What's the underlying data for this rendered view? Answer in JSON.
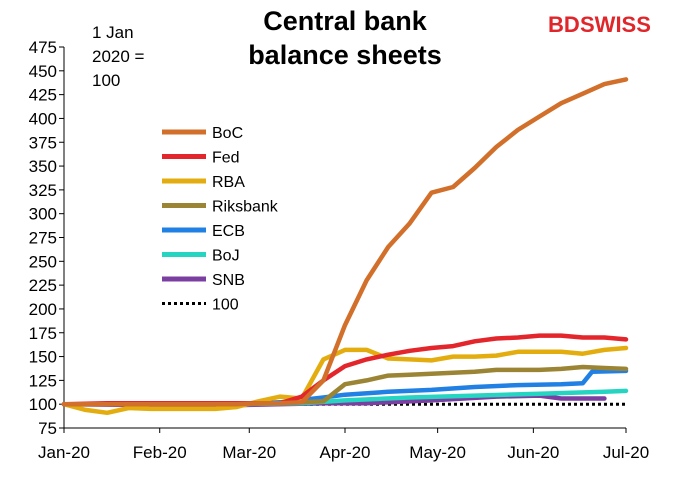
{
  "brand": {
    "bd": "BD",
    "swiss": "SWISS",
    "color": "#e0262b"
  },
  "chart_data": {
    "type": "line",
    "title_lines": [
      "Central bank",
      "balance sheets"
    ],
    "note_lines": [
      "1 Jan",
      "2020 =",
      "100"
    ],
    "ylim": [
      75,
      475
    ],
    "yticks": [
      75,
      100,
      125,
      150,
      175,
      200,
      225,
      250,
      275,
      300,
      325,
      350,
      375,
      400,
      425,
      450,
      475
    ],
    "x_range": [
      "2020-01-01",
      "2020-07-01"
    ],
    "xticks": [
      {
        "date": "2020-01-01",
        "label": "Jan-20"
      },
      {
        "date": "2020-02-01",
        "label": "Feb-20"
      },
      {
        "date": "2020-03-01",
        "label": "Mar-20"
      },
      {
        "date": "2020-04-01",
        "label": "Apr-20"
      },
      {
        "date": "2020-05-01",
        "label": "May-20"
      },
      {
        "date": "2020-06-01",
        "label": "Jun-20"
      },
      {
        "date": "2020-07-01",
        "label": "Jul-20"
      }
    ],
    "grid": false,
    "legend_position": "upper-left",
    "series": [
      {
        "name": "BoC",
        "color": "#d26f2a",
        "dash": false,
        "points": [
          [
            "2020-01-01",
            100
          ],
          [
            "2020-01-08",
            100
          ],
          [
            "2020-01-15",
            100
          ],
          [
            "2020-01-22",
            100
          ],
          [
            "2020-01-29",
            100
          ],
          [
            "2020-02-05",
            100
          ],
          [
            "2020-02-12",
            100
          ],
          [
            "2020-02-19",
            100
          ],
          [
            "2020-02-26",
            100
          ],
          [
            "2020-03-04",
            101
          ],
          [
            "2020-03-11",
            101
          ],
          [
            "2020-03-18",
            102
          ],
          [
            "2020-03-25",
            125
          ],
          [
            "2020-04-01",
            183
          ],
          [
            "2020-04-08",
            230
          ],
          [
            "2020-04-15",
            265
          ],
          [
            "2020-04-22",
            290
          ],
          [
            "2020-04-29",
            322
          ],
          [
            "2020-05-06",
            328
          ],
          [
            "2020-05-13",
            348
          ],
          [
            "2020-05-20",
            370
          ],
          [
            "2020-05-27",
            388
          ],
          [
            "2020-06-03",
            402
          ],
          [
            "2020-06-10",
            416
          ],
          [
            "2020-06-17",
            426
          ],
          [
            "2020-06-24",
            436
          ],
          [
            "2020-07-01",
            441
          ]
        ]
      },
      {
        "name": "Fed",
        "color": "#e3262b",
        "dash": false,
        "points": [
          [
            "2020-01-01",
            100
          ],
          [
            "2020-01-15",
            101
          ],
          [
            "2020-01-29",
            101
          ],
          [
            "2020-02-12",
            101
          ],
          [
            "2020-02-26",
            101
          ],
          [
            "2020-03-04",
            101
          ],
          [
            "2020-03-11",
            101
          ],
          [
            "2020-03-18",
            108
          ],
          [
            "2020-03-25",
            125
          ],
          [
            "2020-04-01",
            140
          ],
          [
            "2020-04-08",
            147
          ],
          [
            "2020-04-15",
            152
          ],
          [
            "2020-04-22",
            156
          ],
          [
            "2020-04-29",
            159
          ],
          [
            "2020-05-06",
            161
          ],
          [
            "2020-05-13",
            166
          ],
          [
            "2020-05-20",
            169
          ],
          [
            "2020-05-27",
            170
          ],
          [
            "2020-06-03",
            172
          ],
          [
            "2020-06-10",
            172
          ],
          [
            "2020-06-17",
            170
          ],
          [
            "2020-06-24",
            170
          ],
          [
            "2020-07-01",
            168
          ]
        ]
      },
      {
        "name": "RBA",
        "color": "#e3ad10",
        "dash": false,
        "points": [
          [
            "2020-01-01",
            100
          ],
          [
            "2020-01-08",
            94
          ],
          [
            "2020-01-15",
            91
          ],
          [
            "2020-01-22",
            96
          ],
          [
            "2020-01-29",
            95
          ],
          [
            "2020-02-05",
            95
          ],
          [
            "2020-02-12",
            95
          ],
          [
            "2020-02-19",
            95
          ],
          [
            "2020-02-26",
            97
          ],
          [
            "2020-03-04",
            103
          ],
          [
            "2020-03-11",
            108
          ],
          [
            "2020-03-18",
            106
          ],
          [
            "2020-03-25",
            147
          ],
          [
            "2020-04-01",
            157
          ],
          [
            "2020-04-08",
            157
          ],
          [
            "2020-04-15",
            148
          ],
          [
            "2020-04-22",
            147
          ],
          [
            "2020-04-29",
            146
          ],
          [
            "2020-05-06",
            150
          ],
          [
            "2020-05-13",
            150
          ],
          [
            "2020-05-20",
            151
          ],
          [
            "2020-05-27",
            155
          ],
          [
            "2020-06-03",
            155
          ],
          [
            "2020-06-10",
            155
          ],
          [
            "2020-06-17",
            153
          ],
          [
            "2020-06-24",
            157
          ],
          [
            "2020-07-01",
            159
          ]
        ]
      },
      {
        "name": "Riksbank",
        "color": "#9b8534",
        "dash": false,
        "points": [
          [
            "2020-01-01",
            100
          ],
          [
            "2020-01-15",
            100
          ],
          [
            "2020-01-29",
            100
          ],
          [
            "2020-02-12",
            100
          ],
          [
            "2020-02-26",
            100
          ],
          [
            "2020-03-11",
            101
          ],
          [
            "2020-03-25",
            103
          ],
          [
            "2020-04-01",
            121
          ],
          [
            "2020-04-08",
            125
          ],
          [
            "2020-04-15",
            130
          ],
          [
            "2020-04-22",
            131
          ],
          [
            "2020-04-29",
            132
          ],
          [
            "2020-05-06",
            133
          ],
          [
            "2020-05-13",
            134
          ],
          [
            "2020-05-20",
            136
          ],
          [
            "2020-05-27",
            136
          ],
          [
            "2020-06-03",
            136
          ],
          [
            "2020-06-10",
            137
          ],
          [
            "2020-06-17",
            139
          ],
          [
            "2020-06-24",
            138
          ],
          [
            "2020-07-01",
            137
          ]
        ]
      },
      {
        "name": "ECB",
        "color": "#2180e3",
        "dash": false,
        "points": [
          [
            "2020-01-01",
            100
          ],
          [
            "2020-01-15",
            100
          ],
          [
            "2020-01-29",
            100
          ],
          [
            "2020-02-12",
            100
          ],
          [
            "2020-02-26",
            100
          ],
          [
            "2020-03-11",
            102
          ],
          [
            "2020-03-25",
            107
          ],
          [
            "2020-04-01",
            110
          ],
          [
            "2020-04-15",
            113
          ],
          [
            "2020-04-29",
            115
          ],
          [
            "2020-05-13",
            118
          ],
          [
            "2020-05-27",
            120
          ],
          [
            "2020-06-10",
            121
          ],
          [
            "2020-06-17",
            122
          ],
          [
            "2020-06-20",
            134
          ],
          [
            "2020-07-01",
            135
          ]
        ]
      },
      {
        "name": "BoJ",
        "color": "#26d4c2",
        "dash": false,
        "points": [
          [
            "2020-01-01",
            100
          ],
          [
            "2020-01-29",
            100
          ],
          [
            "2020-02-26",
            100
          ],
          [
            "2020-03-18",
            101
          ],
          [
            "2020-04-01",
            104
          ],
          [
            "2020-04-22",
            107
          ],
          [
            "2020-05-13",
            109
          ],
          [
            "2020-06-03",
            111
          ],
          [
            "2020-06-24",
            113
          ],
          [
            "2020-07-01",
            114
          ]
        ]
      },
      {
        "name": "SNB",
        "color": "#7b3fa1",
        "dash": false,
        "points": [
          [
            "2020-01-01",
            100
          ],
          [
            "2020-01-29",
            99
          ],
          [
            "2020-02-26",
            99
          ],
          [
            "2020-03-25",
            101
          ],
          [
            "2020-04-08",
            101
          ],
          [
            "2020-04-29",
            104
          ],
          [
            "2020-05-20",
            108
          ],
          [
            "2020-06-03",
            109
          ],
          [
            "2020-06-10",
            106
          ],
          [
            "2020-06-24",
            106
          ]
        ]
      },
      {
        "name": "100",
        "color": "#000000",
        "dash": true,
        "points": [
          [
            "2020-01-01",
            100
          ],
          [
            "2020-07-01",
            100
          ]
        ]
      }
    ]
  }
}
